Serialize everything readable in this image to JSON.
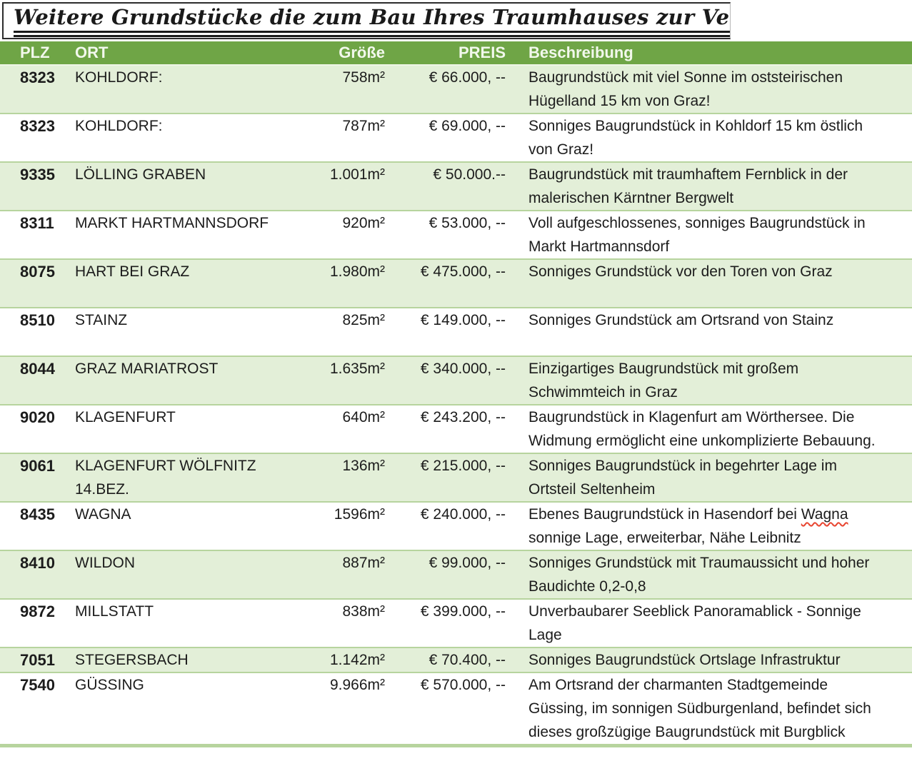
{
  "title": "Weitere Grundstücke die zum Bau Ihres Traumhauses zur Verfügung stehen",
  "colors": {
    "header_green": "#6FA546",
    "header_text": "#F2F8EC",
    "band_green": "#E3EFD8",
    "row_border": "#B7D49E",
    "spell_red": "#E8442F"
  },
  "table": {
    "columns": [
      {
        "key": "plz",
        "label": "PLZ"
      },
      {
        "key": "ort",
        "label": "ORT"
      },
      {
        "key": "groesse",
        "label": "Größe"
      },
      {
        "key": "preis",
        "label": "PREIS"
      },
      {
        "key": "beschreibung",
        "label": "Beschreibung"
      }
    ],
    "rows": [
      {
        "plz": "8323",
        "ort": "KOHLDORF:",
        "groesse": "758m²",
        "preis": "€ 66.000, --",
        "beschreibung": "Baugrundstück mit viel Sonne im oststeirischen Hügelland 15 km von Graz!"
      },
      {
        "plz": "8323",
        "ort": "KOHLDORF:",
        "groesse": "787m²",
        "preis": "€ 69.000, --",
        "beschreibung": "Sonniges Baugrundstück in Kohldorf 15 km östlich von Graz!"
      },
      {
        "plz": "9335",
        "ort": "LÖLLING GRABEN",
        "groesse": "1.001m²",
        "preis": "€ 50.000.--",
        "beschreibung": "Baugrundstück mit traumhaftem Fernblick in der malerischen Kärntner Bergwelt"
      },
      {
        "plz": "8311",
        "ort": "MARKT HARTMANNSDORF",
        "groesse": "920m²",
        "preis": "€ 53.000, --",
        "beschreibung": "Voll aufgeschlossenes, sonniges Baugrundstück in Markt Hartmannsdorf"
      },
      {
        "plz": "8075",
        "ort": "HART BEI GRAZ",
        "groesse": "1.980m²",
        "preis": "€ 475.000, --",
        "beschreibung": "Sonniges Grundstück vor den Toren von Graz",
        "extra_blank_line": true
      },
      {
        "plz": "8510",
        "ort": "STAINZ",
        "groesse": "825m²",
        "preis": "€ 149.000, --",
        "beschreibung": "Sonniges Grundstück am Ortsrand von Stainz",
        "extra_blank_line": true
      },
      {
        "plz": "8044",
        "ort": "GRAZ MARIATROST",
        "groesse": "1.635m²",
        "preis": "€ 340.000, --",
        "beschreibung": "Einzigartiges Baugrundstück mit großem Schwimmteich in Graz"
      },
      {
        "plz": "9020",
        "ort": "KLAGENFURT",
        "groesse": "640m²",
        "preis": "€ 243.200, --",
        "beschreibung": "Baugrundstück in Klagenfurt am Wörthersee. Die Widmung ermöglicht eine unkomplizierte Bebauung."
      },
      {
        "plz": "9061",
        "ort": "KLAGENFURT WÖLFNITZ 14.BEZ.",
        "groesse": "136m²",
        "preis": "€ 215.000, --",
        "beschreibung": "Sonniges Baugrundstück in begehrter Lage im Ortsteil Seltenheim"
      },
      {
        "plz": "8435",
        "ort": "WAGNA",
        "groesse": "1596m²",
        "preis": "€ 240.000, --",
        "beschreibung": "Ebenes Baugrundstück in Hasendorf bei Wagna sonnige Lage, erweiterbar, Nähe Leibnitz",
        "misspelled_word": "Wagna"
      },
      {
        "plz": "8410",
        "ort": "WILDON",
        "groesse": "887m²",
        "preis": "€ 99.000, --",
        "beschreibung": "Sonniges Grundstück mit Traumaussicht und hoher Baudichte 0,2-0,8"
      },
      {
        "plz": "9872",
        "ort": "MILLSTATT",
        "groesse": "838m²",
        "preis": "€ 399.000, --",
        "beschreibung": "Unverbaubarer Seeblick Panoramablick - Sonnige Lage"
      },
      {
        "plz": "7051",
        "ort": "STEGERSBACH",
        "groesse": "1.142m²",
        "preis": "€ 70.400, --",
        "beschreibung": "Sonniges Baugrundstück Ortslage Infrastruktur"
      },
      {
        "plz": "7540",
        "ort": "GÜSSING",
        "groesse": "9.966m²",
        "preis": "€ 570.000, --",
        "beschreibung": "Am Ortsrand der charmanten Stadtgemeinde Güssing, im sonnigen Südburgenland, befindet sich dieses großzügige Baugrundstück mit Burgblick"
      }
    ]
  }
}
